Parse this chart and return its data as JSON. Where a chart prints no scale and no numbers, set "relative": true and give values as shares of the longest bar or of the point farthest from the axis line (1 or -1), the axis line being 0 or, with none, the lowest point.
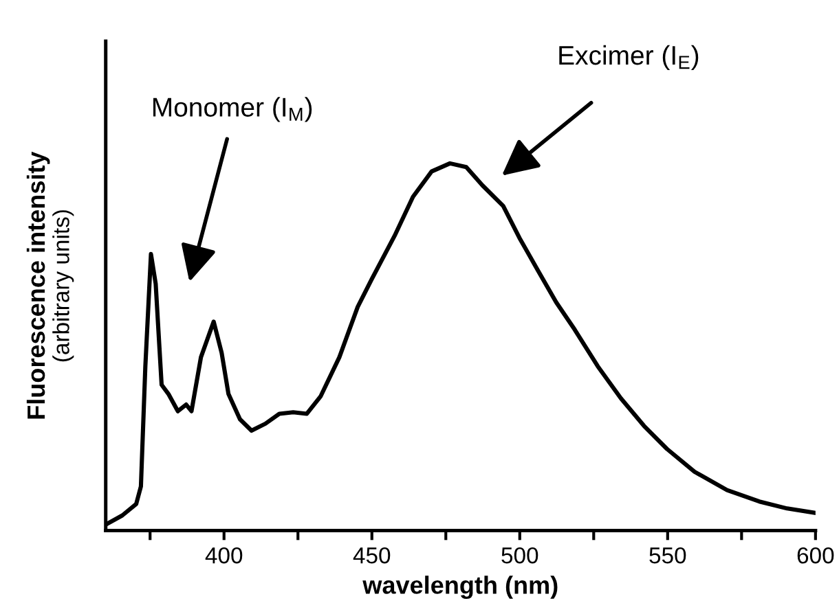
{
  "chart_data": {
    "type": "line",
    "relative": true,
    "xlabel": "wavelength (nm)",
    "ylabel": "Fluorescence intensity\n(arbitrary units)",
    "xlim": [
      360,
      600
    ],
    "xticks": [
      {
        "value": 375,
        "label": null
      },
      400,
      {
        "value": 425,
        "label": null
      },
      450,
      {
        "value": 475,
        "label": null
      },
      500,
      {
        "value": 525,
        "label": null
      },
      550,
      {
        "value": 575,
        "label": null
      },
      600
    ],
    "grid": false,
    "marker": "none",
    "line_style": "solid",
    "tick_labels": "x",
    "annotations": [
      "Monomer (I$_{M}$)",
      "Excimer (I$_{E}$)"
    ],
    "series": [
      {
        "color": "#000000",
        "x": [
          360,
          365.6,
          370.3,
          371.9,
          373.4,
          375.3,
          376.9,
          378.9,
          381.2,
          384.4,
          387.2,
          389,
          392.2,
          396.5,
          399.2,
          401.5,
          405.4,
          409.3,
          414,
          418.7,
          423.4,
          428,
          432.7,
          439,
          445.2,
          449.9,
          457.7,
          463.9,
          470.2,
          476.4,
          481.9,
          487.4,
          494.4,
          499.9,
          506.1,
          512.3,
          518.6,
          526.4,
          534.2,
          542,
          549.8,
          559.1,
          570.1,
          581,
          590.4,
          600
        ],
        "values": [
          0.016,
          0.041,
          0.072,
          0.12,
          0.447,
          0.753,
          0.672,
          0.397,
          0.372,
          0.325,
          0.343,
          0.325,
          0.472,
          0.569,
          0.484,
          0.372,
          0.303,
          0.272,
          0.291,
          0.318,
          0.322,
          0.318,
          0.366,
          0.472,
          0.609,
          0.684,
          0.803,
          0.909,
          0.978,
          1.0,
          0.99,
          0.94,
          0.884,
          0.797,
          0.709,
          0.622,
          0.547,
          0.447,
          0.36,
          0.285,
          0.222,
          0.16,
          0.11,
          0.079,
          0.06,
          0.048
        ]
      }
    ]
  }
}
